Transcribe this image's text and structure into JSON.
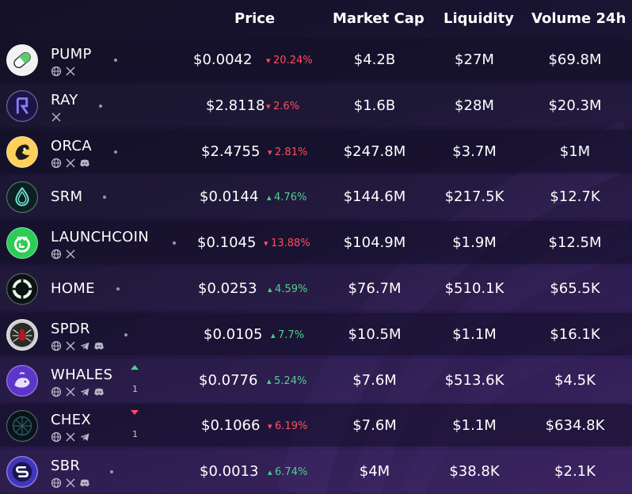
{
  "header": {
    "price": "Price",
    "market_cap": "Market Cap",
    "liquidity": "Liquidity",
    "volume": "Volume 24h"
  },
  "tokens": [
    {
      "name": "PUMP",
      "socials": [
        "globe-icon",
        "x-icon"
      ],
      "price": "$0.0042",
      "change": "20.24%",
      "dir": "down",
      "mcap": "$4.2B",
      "liq": "$27M",
      "vol": "$69.8M",
      "logo": "pill-icon"
    },
    {
      "name": "RAY",
      "socials": [
        "x-icon"
      ],
      "price": "$2.8118",
      "change": "2.6%",
      "dir": "down",
      "mcap": "$1.6B",
      "liq": "$28M",
      "vol": "$20.3M",
      "logo": "raydium-icon"
    },
    {
      "name": "ORCA",
      "socials": [
        "globe-icon",
        "x-icon",
        "discord-icon"
      ],
      "price": "$2.4755",
      "change": "2.81%",
      "dir": "down",
      "mcap": "$247.8M",
      "liq": "$3.7M",
      "vol": "$1M",
      "logo": "orca-icon"
    },
    {
      "name": "SRM",
      "socials": [],
      "price": "$0.0144",
      "change": "4.76%",
      "dir": "up",
      "mcap": "$144.6M",
      "liq": "$217.5K",
      "vol": "$12.7K",
      "logo": "serum-icon"
    },
    {
      "name": "LAUNCHCOIN",
      "socials": [
        "globe-icon",
        "x-icon"
      ],
      "price": "$0.1045",
      "change": "13.88%",
      "dir": "down",
      "mcap": "$104.9M",
      "liq": "$1.9M",
      "vol": "$12.5M",
      "logo": "launchcoin-icon"
    },
    {
      "name": "HOME",
      "socials": [],
      "price": "$0.0253",
      "change": "4.59%",
      "dir": "up",
      "mcap": "$76.7M",
      "liq": "$510.1K",
      "vol": "$65.5K",
      "logo": "home-icon"
    },
    {
      "name": "SPDR",
      "socials": [
        "globe-icon",
        "x-icon",
        "telegram-icon",
        "discord-icon"
      ],
      "price": "$0.0105",
      "change": "7.7%",
      "dir": "up",
      "mcap": "$10.5M",
      "liq": "$1.1M",
      "vol": "$16.1K",
      "logo": "spider-icon"
    },
    {
      "name": "WHALES",
      "socials": [
        "globe-icon",
        "x-icon",
        "telegram-icon",
        "discord-icon"
      ],
      "price": "$0.0776",
      "change": "5.24%",
      "dir": "up",
      "mcap": "$7.6M",
      "liq": "$513.6K",
      "vol": "$4.5K",
      "logo": "whale-icon",
      "trend": {
        "dir": "up",
        "count": "1"
      }
    },
    {
      "name": "CHEX",
      "socials": [
        "globe-icon",
        "x-icon",
        "telegram-icon"
      ],
      "price": "$0.1066",
      "change": "6.19%",
      "dir": "down",
      "mcap": "$7.6M",
      "liq": "$1.1M",
      "vol": "$634.8K",
      "logo": "chex-icon",
      "trend": {
        "dir": "down",
        "count": "1"
      }
    },
    {
      "name": "SBR",
      "socials": [
        "globe-icon",
        "x-icon",
        "discord-icon"
      ],
      "price": "$0.0013",
      "change": "6.74%",
      "dir": "up",
      "mcap": "$4M",
      "liq": "$38.8K",
      "vol": "$2.1K",
      "logo": "saber-icon"
    }
  ],
  "colors": {
    "down": "#ff4d5e",
    "up": "#4fd18b",
    "background": "#1a1433"
  }
}
